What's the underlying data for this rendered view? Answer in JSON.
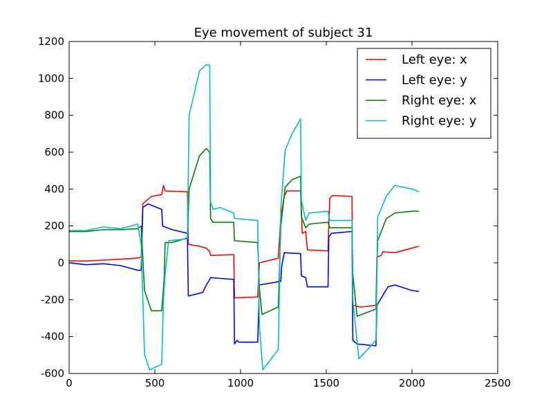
{
  "chart_data": {
    "type": "line",
    "title": "Eye movement of subject 31",
    "xlabel": "",
    "ylabel": "",
    "xlim": [
      0,
      2500
    ],
    "ylim": [
      -600,
      1200
    ],
    "xticks": [
      0,
      500,
      1000,
      1500,
      2000,
      2500
    ],
    "yticks": [
      -600,
      -400,
      -200,
      0,
      200,
      400,
      600,
      800,
      1000,
      1200
    ],
    "grid": false,
    "legend_position": "top-right",
    "series": [
      {
        "name": "Left eye: x",
        "color": "#ff0000",
        "points": [
          [
            0,
            10
          ],
          [
            100,
            10
          ],
          [
            200,
            15
          ],
          [
            300,
            20
          ],
          [
            390,
            25
          ],
          [
            420,
            30
          ],
          [
            430,
            320
          ],
          [
            480,
            360
          ],
          [
            540,
            370
          ],
          [
            550,
            420
          ],
          [
            560,
            390
          ],
          [
            690,
            385
          ],
          [
            695,
            100
          ],
          [
            760,
            90
          ],
          [
            800,
            80
          ],
          [
            820,
            60
          ],
          [
            825,
            40
          ],
          [
            960,
            45
          ],
          [
            965,
            -190
          ],
          [
            1100,
            -185
          ],
          [
            1110,
            0
          ],
          [
            1220,
            25
          ],
          [
            1235,
            250
          ],
          [
            1255,
            360
          ],
          [
            1270,
            390
          ],
          [
            1350,
            390
          ],
          [
            1360,
            160
          ],
          [
            1380,
            170
          ],
          [
            1390,
            70
          ],
          [
            1510,
            65
          ],
          [
            1520,
            350
          ],
          [
            1535,
            365
          ],
          [
            1650,
            360
          ],
          [
            1655,
            -230
          ],
          [
            1700,
            -240
          ],
          [
            1790,
            -230
          ],
          [
            1795,
            30
          ],
          [
            1820,
            40
          ],
          [
            1830,
            60
          ],
          [
            1900,
            55
          ],
          [
            2000,
            80
          ],
          [
            2040,
            90
          ]
        ]
      },
      {
        "name": "Left eye: y",
        "color": "#0000ff",
        "points": [
          [
            0,
            0
          ],
          [
            100,
            -10
          ],
          [
            200,
            -5
          ],
          [
            300,
            -15
          ],
          [
            400,
            -40
          ],
          [
            420,
            -40
          ],
          [
            430,
            300
          ],
          [
            460,
            320
          ],
          [
            540,
            290
          ],
          [
            545,
            200
          ],
          [
            600,
            180
          ],
          [
            690,
            160
          ],
          [
            695,
            -180
          ],
          [
            780,
            -160
          ],
          [
            800,
            -120
          ],
          [
            820,
            -90
          ],
          [
            825,
            -80
          ],
          [
            960,
            -90
          ],
          [
            965,
            -440
          ],
          [
            980,
            -420
          ],
          [
            990,
            -430
          ],
          [
            1100,
            -430
          ],
          [
            1110,
            -120
          ],
          [
            1235,
            -100
          ],
          [
            1240,
            -20
          ],
          [
            1255,
            55
          ],
          [
            1350,
            50
          ],
          [
            1355,
            -70
          ],
          [
            1380,
            -80
          ],
          [
            1390,
            -130
          ],
          [
            1510,
            -130
          ],
          [
            1515,
            140
          ],
          [
            1530,
            160
          ],
          [
            1650,
            170
          ],
          [
            1655,
            -420
          ],
          [
            1680,
            -440
          ],
          [
            1790,
            -450
          ],
          [
            1795,
            -230
          ],
          [
            1860,
            -130
          ],
          [
            1900,
            -120
          ],
          [
            2000,
            -150
          ],
          [
            2040,
            -155
          ]
        ]
      },
      {
        "name": "Right eye: x",
        "color": "#008000",
        "points": [
          [
            0,
            170
          ],
          [
            100,
            170
          ],
          [
            200,
            180
          ],
          [
            300,
            180
          ],
          [
            400,
            185
          ],
          [
            420,
            200
          ],
          [
            440,
            -150
          ],
          [
            480,
            -260
          ],
          [
            540,
            -260
          ],
          [
            555,
            -80
          ],
          [
            560,
            110
          ],
          [
            600,
            110
          ],
          [
            690,
            135
          ],
          [
            700,
            400
          ],
          [
            760,
            580
          ],
          [
            800,
            620
          ],
          [
            820,
            600
          ],
          [
            825,
            240
          ],
          [
            840,
            220
          ],
          [
            880,
            220
          ],
          [
            960,
            220
          ],
          [
            965,
            120
          ],
          [
            1100,
            110
          ],
          [
            1110,
            -140
          ],
          [
            1125,
            -280
          ],
          [
            1220,
            -240
          ],
          [
            1235,
            200
          ],
          [
            1260,
            410
          ],
          [
            1300,
            450
          ],
          [
            1350,
            470
          ],
          [
            1355,
            250
          ],
          [
            1380,
            190
          ],
          [
            1400,
            210
          ],
          [
            1510,
            220
          ],
          [
            1520,
            190
          ],
          [
            1650,
            190
          ],
          [
            1655,
            -60
          ],
          [
            1680,
            -290
          ],
          [
            1790,
            -250
          ],
          [
            1800,
            120
          ],
          [
            1850,
            240
          ],
          [
            1900,
            270
          ],
          [
            2000,
            280
          ],
          [
            2040,
            280
          ]
        ]
      },
      {
        "name": "Right eye: y",
        "color": "#00bfbf",
        "points": [
          [
            0,
            175
          ],
          [
            100,
            175
          ],
          [
            200,
            195
          ],
          [
            300,
            185
          ],
          [
            400,
            210
          ],
          [
            420,
            100
          ],
          [
            440,
            -500
          ],
          [
            470,
            -580
          ],
          [
            540,
            -550
          ],
          [
            550,
            -200
          ],
          [
            560,
            -60
          ],
          [
            580,
            120
          ],
          [
            690,
            130
          ],
          [
            700,
            800
          ],
          [
            760,
            1040
          ],
          [
            800,
            1075
          ],
          [
            820,
            1070
          ],
          [
            825,
            330
          ],
          [
            840,
            290
          ],
          [
            880,
            300
          ],
          [
            960,
            270
          ],
          [
            965,
            240
          ],
          [
            1100,
            230
          ],
          [
            1110,
            -350
          ],
          [
            1130,
            -580
          ],
          [
            1220,
            -470
          ],
          [
            1235,
            300
          ],
          [
            1260,
            610
          ],
          [
            1300,
            700
          ],
          [
            1350,
            780
          ],
          [
            1355,
            340
          ],
          [
            1380,
            230
          ],
          [
            1400,
            270
          ],
          [
            1510,
            280
          ],
          [
            1520,
            230
          ],
          [
            1650,
            230
          ],
          [
            1655,
            -200
          ],
          [
            1690,
            -520
          ],
          [
            1790,
            -420
          ],
          [
            1800,
            250
          ],
          [
            1850,
            360
          ],
          [
            1900,
            420
          ],
          [
            2000,
            400
          ],
          [
            2040,
            385
          ]
        ]
      }
    ]
  }
}
